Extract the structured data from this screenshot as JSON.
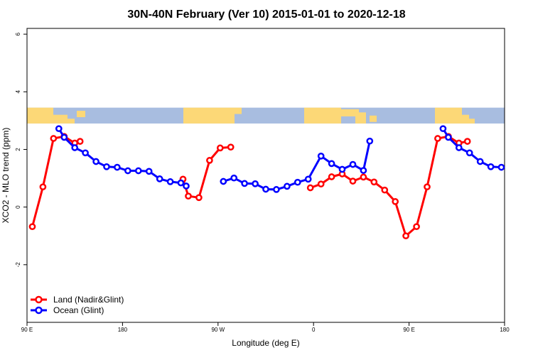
{
  "chart_data": {
    "type": "line",
    "title": "30N-40N February (Ver 10)   2015-01-01 to 2020-12-18",
    "xlabel": "Longitude (deg E)",
    "ylabel": "XCO2 - MLO trend (ppm)",
    "xlim": [
      90,
      540
    ],
    "ylim": [
      -4,
      6.2
    ],
    "x_ticks": [
      {
        "value": 90,
        "label": "90 E"
      },
      {
        "value": 180,
        "label": "180"
      },
      {
        "value": 270,
        "label": "90 W"
      },
      {
        "value": 360,
        "label": "0"
      },
      {
        "value": 450,
        "label": "90 E"
      },
      {
        "value": 540,
        "label": "180"
      }
    ],
    "y_ticks": [
      {
        "value": -2,
        "label": "-2"
      },
      {
        "value": 0,
        "label": "0"
      },
      {
        "value": 2,
        "label": "2"
      },
      {
        "value": 4,
        "label": "4"
      },
      {
        "value": 6,
        "label": "6"
      }
    ],
    "map_strip": {
      "y_bottom": 2.9,
      "y_top": 3.45,
      "ocean_color": "#a8bde0",
      "land_color": "#fcd877"
    },
    "legend": {
      "position": "bottom-left"
    },
    "series": [
      {
        "name": "Land (Nadir&Glint)",
        "color": "#ff0000",
        "segments": [
          [
            [
              95,
              -0.68
            ],
            [
              105,
              0.7
            ],
            [
              115,
              2.38
            ],
            [
              125,
              2.45
            ],
            [
              135,
              2.22
            ],
            [
              140,
              2.28
            ]
          ],
          [
            [
              237,
              0.97
            ],
            [
              242,
              0.38
            ],
            [
              252,
              0.33
            ],
            [
              262,
              1.62
            ],
            [
              272,
              2.05
            ],
            [
              282,
              2.08
            ]
          ],
          [
            [
              357,
              0.67
            ],
            [
              367,
              0.8
            ],
            [
              377,
              1.05
            ],
            [
              387,
              1.15
            ],
            [
              397,
              0.9
            ],
            [
              407,
              1.04
            ],
            [
              417,
              0.87
            ],
            [
              427,
              0.59
            ],
            [
              437,
              0.19
            ],
            [
              447,
              -1.0
            ],
            [
              457,
              -0.68
            ],
            [
              467,
              0.7
            ],
            [
              477,
              2.38
            ],
            [
              487,
              2.45
            ],
            [
              497,
              2.22
            ],
            [
              505,
              2.28
            ]
          ]
        ]
      },
      {
        "name": "Ocean (Glint)",
        "color": "#0000ff",
        "segments": [
          [
            [
              120,
              2.72
            ],
            [
              125,
              2.42
            ],
            [
              135,
              2.06
            ],
            [
              145,
              1.88
            ],
            [
              155,
              1.58
            ],
            [
              165,
              1.4
            ],
            [
              175,
              1.38
            ],
            [
              185,
              1.26
            ],
            [
              195,
              1.26
            ],
            [
              205,
              1.24
            ],
            [
              215,
              0.98
            ],
            [
              225,
              0.88
            ],
            [
              235,
              0.84
            ],
            [
              240,
              0.73
            ]
          ],
          [
            [
              275,
              0.89
            ],
            [
              285,
              1.01
            ],
            [
              295,
              0.82
            ],
            [
              305,
              0.81
            ],
            [
              315,
              0.62
            ],
            [
              325,
              0.61
            ],
            [
              335,
              0.72
            ],
            [
              345,
              0.86
            ],
            [
              355,
              0.97
            ],
            [
              367,
              1.77
            ],
            [
              377,
              1.51
            ],
            [
              387,
              1.31
            ],
            [
              397,
              1.48
            ],
            [
              407,
              1.27
            ],
            [
              413,
              2.29
            ]
          ],
          [
            [
              482,
              2.72
            ],
            [
              487,
              2.42
            ],
            [
              497,
              2.06
            ],
            [
              507,
              1.88
            ],
            [
              517,
              1.58
            ],
            [
              527,
              1.4
            ],
            [
              537,
              1.38
            ]
          ]
        ]
      }
    ]
  }
}
